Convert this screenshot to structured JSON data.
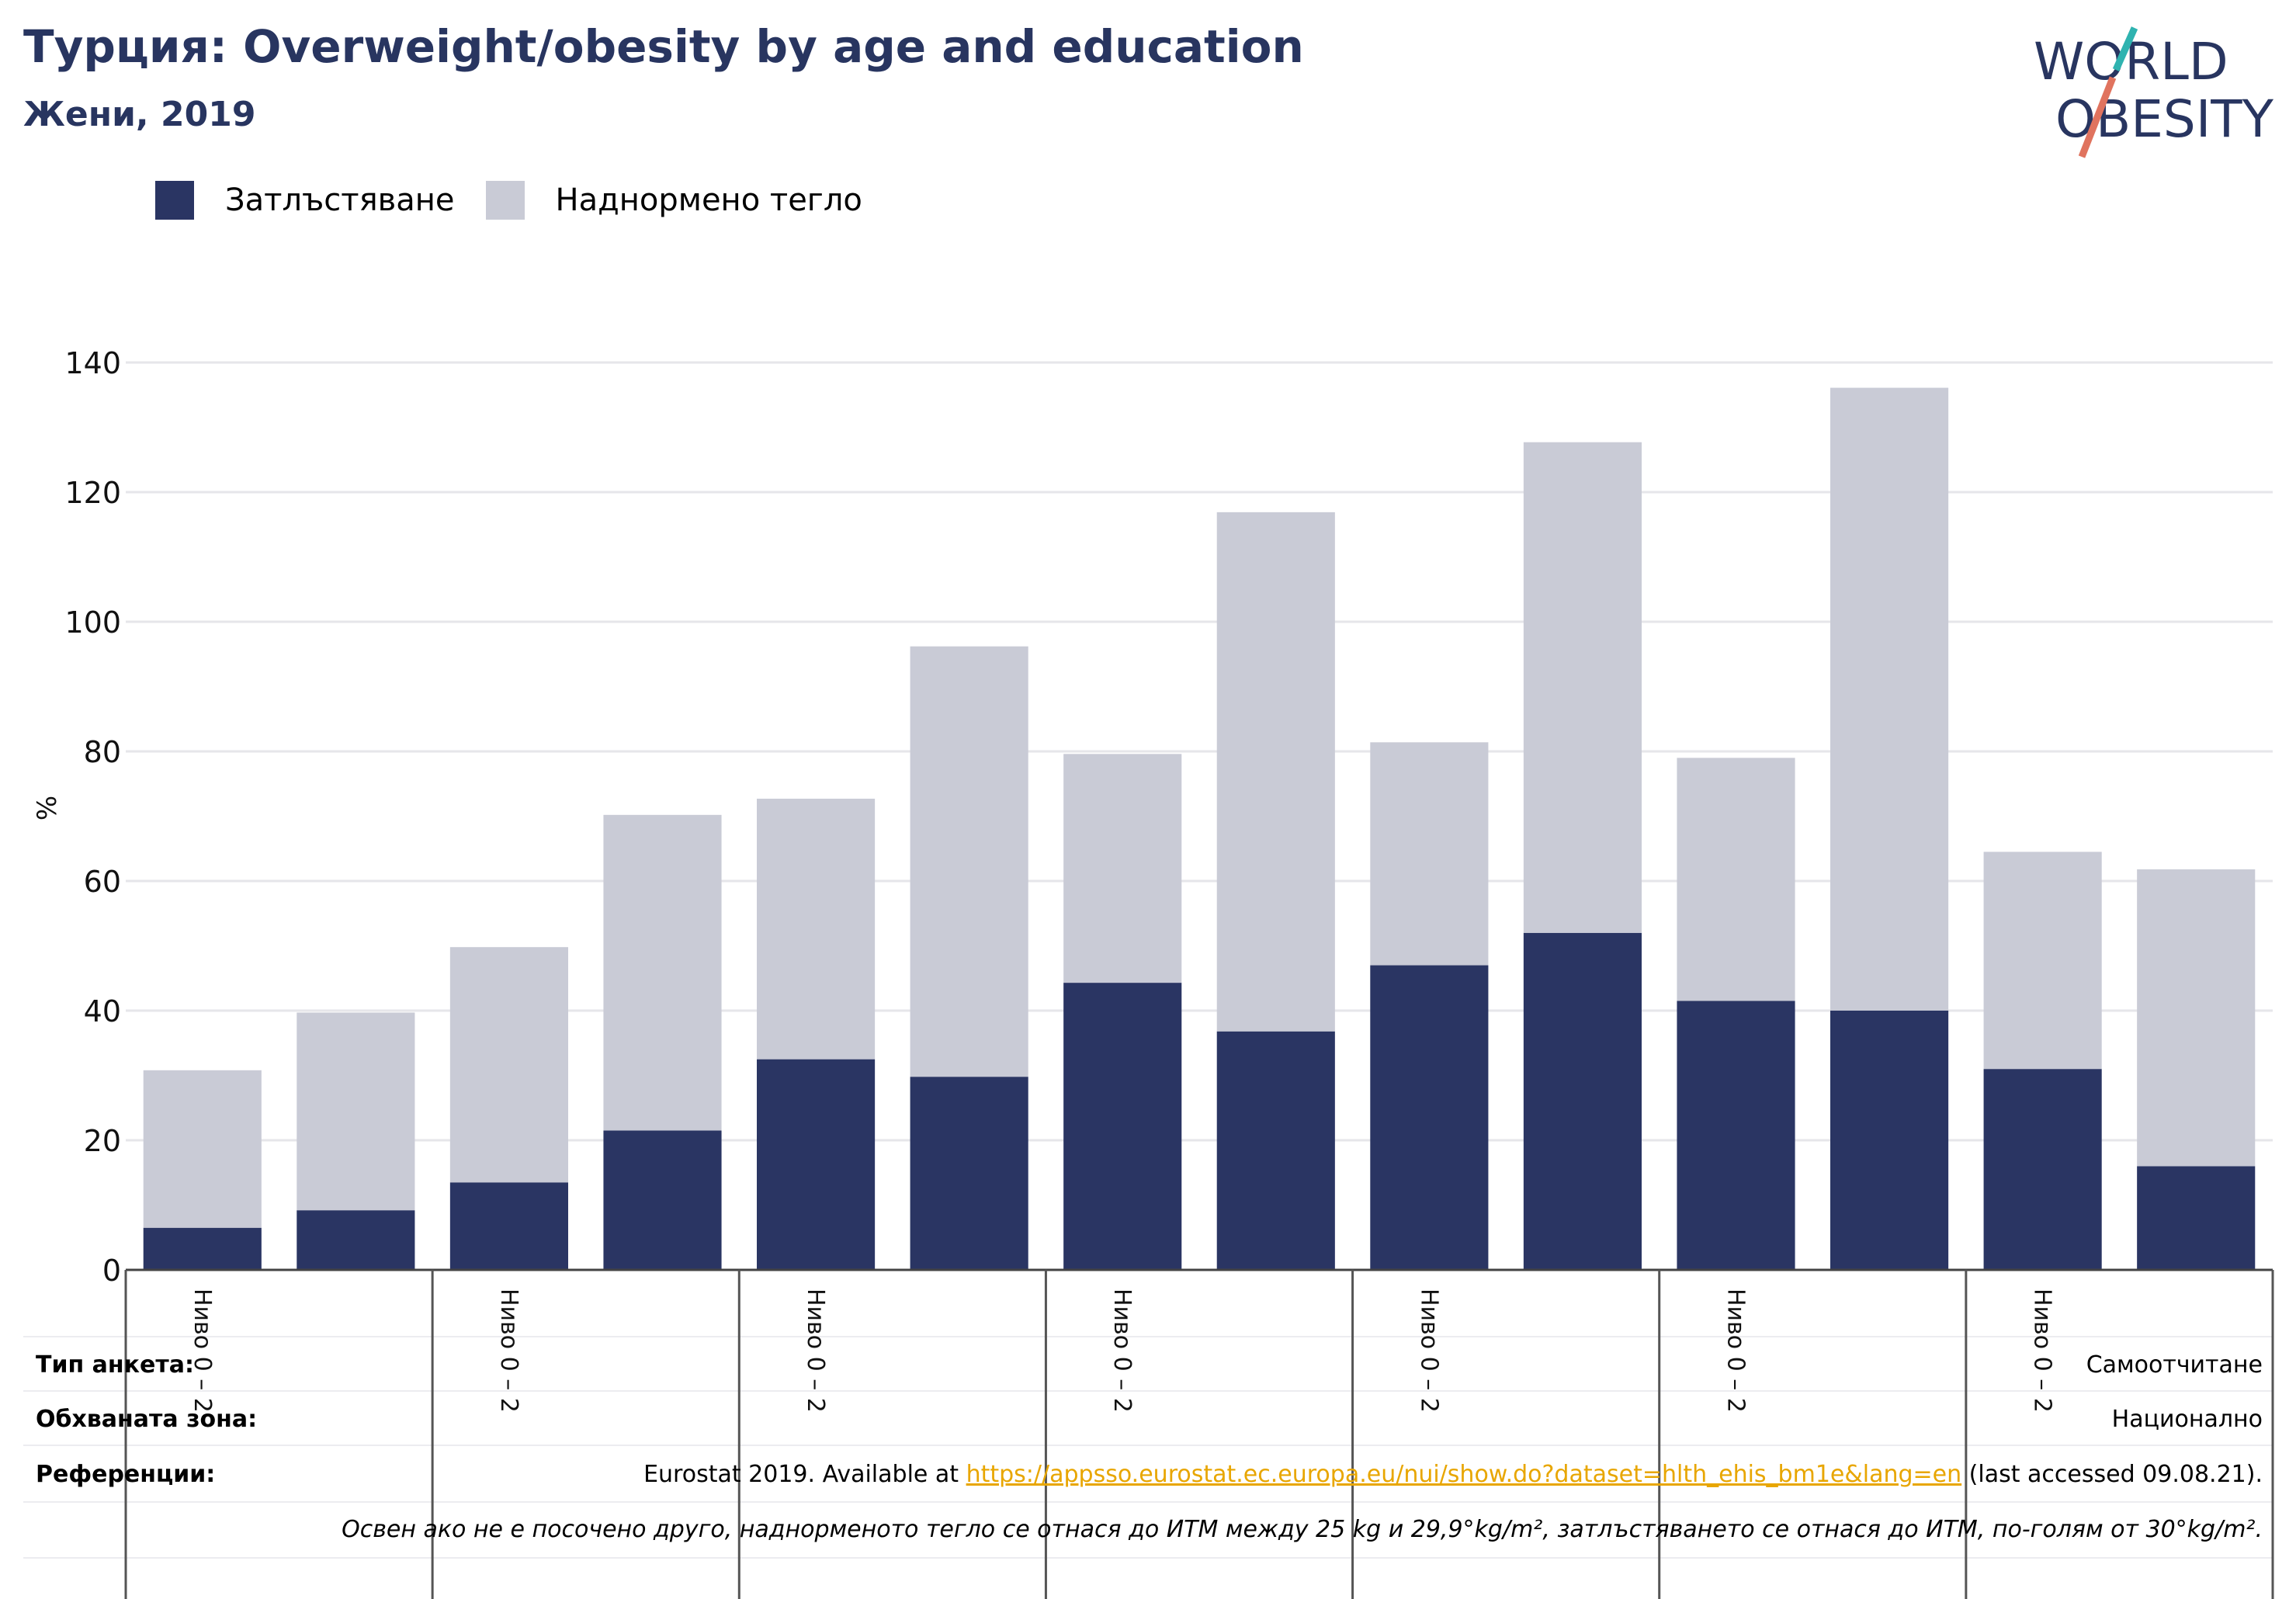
{
  "title": "Турция: Overweight/obesity by age and education",
  "subtitle": "Жени, 2019",
  "logo": {
    "line1": "WORLD",
    "line2": "OBESITY"
  },
  "colors": {
    "obesity": "#2a3563",
    "overweight": "#c9cbd6",
    "title": "#283560",
    "link": "#e8a600"
  },
  "legend": [
    {
      "label": "Затлъстяване",
      "color": "#2a3563"
    },
    {
      "label": "Наднормено тегло",
      "color": "#c9cbd6"
    }
  ],
  "chart_data": {
    "type": "bar",
    "stacked": true,
    "ylabel": "%",
    "ylim": [
      0,
      140
    ],
    "yticks": [
      0,
      20,
      40,
      60,
      80,
      100,
      120,
      140
    ],
    "grid": true,
    "group_label": "Ниво 0 – 2",
    "groups": 7,
    "series": [
      {
        "name": "Затлъстяване",
        "values": [
          6.5,
          9.2,
          13.5,
          21.5,
          32.5,
          29.8,
          44.3,
          36.8,
          47.0,
          52.0,
          41.5,
          40.0,
          31.0,
          16.0
        ]
      },
      {
        "name": "Наднормено тегло",
        "values": [
          24.3,
          30.5,
          36.3,
          48.7,
          40.2,
          66.4,
          35.3,
          80.1,
          34.4,
          75.7,
          37.5,
          96.1,
          33.5,
          45.8
        ]
      }
    ]
  },
  "info": {
    "survey_type_label": "Тип анкета:",
    "survey_type_value": "Самоотчитане",
    "coverage_label": "Обхваната зона:",
    "coverage_value": "Национално",
    "references_label": "Референции:",
    "references_prefix": "Eurostat 2019. Available at ",
    "references_link": "https://appsso.eurostat.ec.europa.eu/nui/show.do?dataset=hlth_ehis_bm1e&lang=en",
    "references_suffix": " (last accessed 09.08.21).",
    "note": "Освен ако не е посочено друго, наднорменото тегло се отнася до ИТМ между 25 kg и 29,9°kg/m², затлъстяването се отнася до ИТМ, по-голям от 30°kg/m²."
  }
}
